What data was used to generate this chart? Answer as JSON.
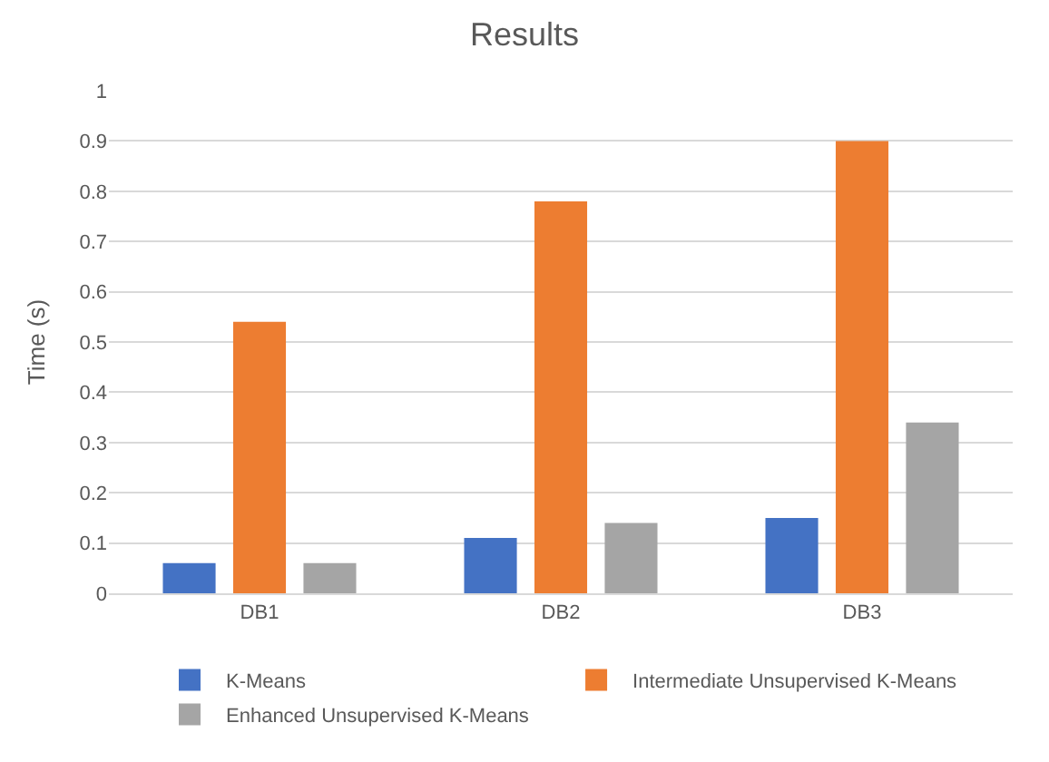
{
  "chart_data": {
    "type": "bar",
    "title": "Results",
    "ylabel": "Time (s)",
    "categories": [
      "DB1",
      "DB2",
      "DB3"
    ],
    "series": [
      {
        "name": "K-Means",
        "color": "#4472c4",
        "values": [
          0.06,
          0.11,
          0.15
        ]
      },
      {
        "name": "Intermediate Unsupervised K-Means",
        "color": "#ed7d31",
        "values": [
          0.54,
          0.78,
          0.9
        ]
      },
      {
        "name": "Enhanced Unsupervised K-Means",
        "color": "#a5a5a5",
        "values": [
          0.06,
          0.14,
          0.34
        ]
      }
    ],
    "ylim": [
      0,
      1
    ],
    "yticks": [
      0,
      0.1,
      0.2,
      0.3,
      0.4,
      0.5,
      0.6,
      0.7,
      0.8,
      0.9,
      1
    ],
    "grid": "y",
    "legend": "bottom"
  }
}
